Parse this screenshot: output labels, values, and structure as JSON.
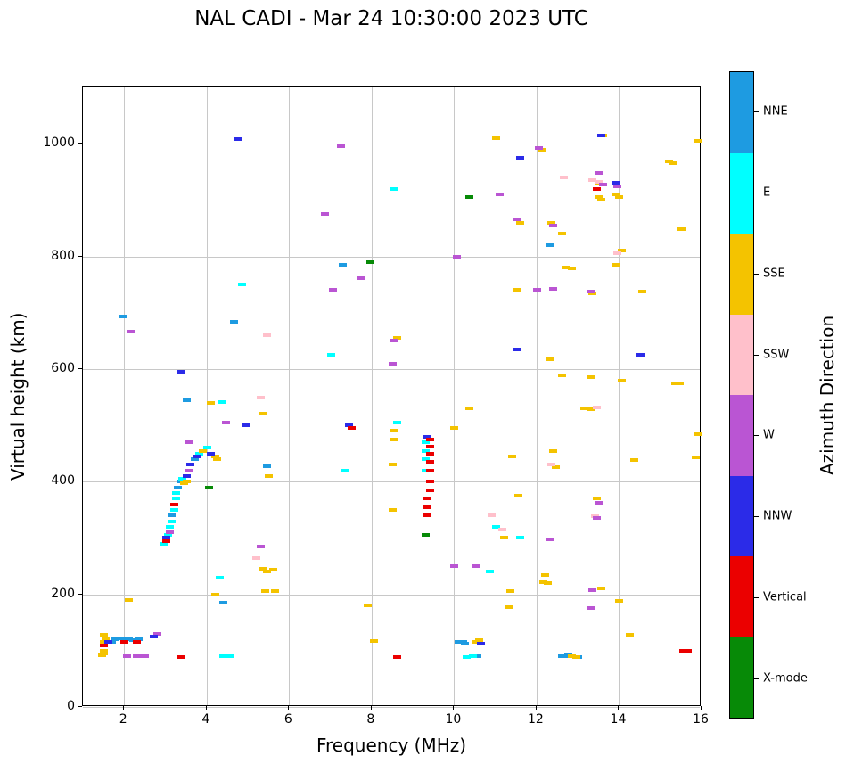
{
  "title": "NAL CADI - Mar 24 10:30:00 2023 UTC",
  "chart_data": {
    "type": "scatter",
    "title": "NAL CADI - Mar 24 10:30:00 2023 UTC",
    "xlabel": "Frequency (MHz)",
    "ylabel": "Virtual height (km)",
    "xlim": [
      1,
      16
    ],
    "ylim": [
      0,
      1100
    ],
    "x_ticks": [
      2,
      4,
      6,
      8,
      10,
      12,
      14,
      16
    ],
    "y_ticks": [
      0,
      200,
      400,
      600,
      800,
      1000
    ],
    "grid": true,
    "grid_color": "#c8c8c8",
    "axis_color": "#000000",
    "background_color": "#ffffff",
    "marker": "horizontal-dash",
    "colorbar": {
      "label": "Azimuth Direction",
      "position": "right",
      "order": "top-to-bottom",
      "categories": [
        {
          "label": "NNE",
          "color": "#1E9BE1"
        },
        {
          "label": "E",
          "color": "#00FFFF"
        },
        {
          "label": "SSE",
          "color": "#F4C300"
        },
        {
          "label": "SSW",
          "color": "#FFC0CB"
        },
        {
          "label": "W",
          "color": "#BA55D3"
        },
        {
          "label": "NNW",
          "color": "#2B2BE8"
        },
        {
          "label": "Vertical",
          "color": "#EB0000"
        },
        {
          "label": "X-mode",
          "color": "#078A07"
        }
      ]
    },
    "series": [
      {
        "name": "NNE",
        "points": [
          [
            1.7,
            115
          ],
          [
            1.75,
            120
          ],
          [
            1.9,
            122
          ],
          [
            2.1,
            120
          ],
          [
            2.2,
            118
          ],
          [
            2.35,
            120
          ],
          [
            1.95,
            693
          ],
          [
            3.15,
            340
          ],
          [
            3.3,
            390
          ],
          [
            3.35,
            400
          ],
          [
            3.5,
            545
          ],
          [
            3.7,
            440
          ],
          [
            4.4,
            185
          ],
          [
            4.65,
            683
          ],
          [
            5.45,
            428
          ],
          [
            7.3,
            785
          ],
          [
            10.1,
            115
          ],
          [
            10.2,
            115
          ],
          [
            10.25,
            112
          ],
          [
            10.55,
            90
          ],
          [
            12.3,
            820
          ],
          [
            12.6,
            90
          ],
          [
            12.7,
            90
          ],
          [
            12.75,
            92
          ],
          [
            13.0,
            88
          ]
        ]
      },
      {
        "name": "E",
        "points": [
          [
            2.95,
            290
          ],
          [
            3.05,
            305
          ],
          [
            3.1,
            320
          ],
          [
            3.15,
            330
          ],
          [
            3.2,
            350
          ],
          [
            3.25,
            370
          ],
          [
            3.25,
            380
          ],
          [
            3.4,
            405
          ],
          [
            3.8,
            450
          ],
          [
            4.0,
            460
          ],
          [
            4.35,
            542
          ],
          [
            4.3,
            230
          ],
          [
            4.4,
            90
          ],
          [
            4.55,
            90
          ],
          [
            4.85,
            750
          ],
          [
            7.0,
            625
          ],
          [
            7.35,
            420
          ],
          [
            8.6,
            505
          ],
          [
            8.55,
            920
          ],
          [
            9.3,
            420
          ],
          [
            9.3,
            440
          ],
          [
            9.3,
            455
          ],
          [
            9.3,
            470
          ],
          [
            10.3,
            88
          ],
          [
            10.45,
            90
          ],
          [
            10.85,
            240
          ],
          [
            11.0,
            320
          ],
          [
            11.6,
            300
          ]
        ]
      },
      {
        "name": "SSE",
        "points": [
          [
            1.45,
            92
          ],
          [
            1.5,
            95
          ],
          [
            1.5,
            100
          ],
          [
            1.5,
            115
          ],
          [
            1.55,
            120
          ],
          [
            1.5,
            128
          ],
          [
            2.1,
            190
          ],
          [
            3.45,
            398
          ],
          [
            3.5,
            400
          ],
          [
            3.9,
            455
          ],
          [
            4.1,
            540
          ],
          [
            4.2,
            445
          ],
          [
            4.25,
            440
          ],
          [
            4.2,
            200
          ],
          [
            5.35,
            520
          ],
          [
            5.35,
            245
          ],
          [
            5.4,
            205
          ],
          [
            5.45,
            240
          ],
          [
            5.6,
            243
          ],
          [
            5.65,
            205
          ],
          [
            5.5,
            410
          ],
          [
            7.9,
            180
          ],
          [
            8.05,
            117
          ],
          [
            8.5,
            430
          ],
          [
            8.5,
            350
          ],
          [
            8.55,
            475
          ],
          [
            8.55,
            490
          ],
          [
            8.6,
            655
          ],
          [
            10.0,
            495
          ],
          [
            10.35,
            530
          ],
          [
            10.5,
            115
          ],
          [
            10.6,
            118
          ],
          [
            11.0,
            1010
          ],
          [
            11.2,
            300
          ],
          [
            11.3,
            178
          ],
          [
            11.35,
            205
          ],
          [
            11.4,
            444
          ],
          [
            11.5,
            740
          ],
          [
            11.55,
            375
          ],
          [
            11.6,
            860
          ],
          [
            12.1,
            990
          ],
          [
            12.2,
            235
          ],
          [
            12.15,
            222
          ],
          [
            12.25,
            220
          ],
          [
            12.3,
            618
          ],
          [
            12.35,
            860
          ],
          [
            12.45,
            425
          ],
          [
            12.4,
            455
          ],
          [
            12.6,
            588
          ],
          [
            12.6,
            840
          ],
          [
            12.7,
            780
          ],
          [
            12.85,
            778
          ],
          [
            12.85,
            90
          ],
          [
            12.95,
            88
          ],
          [
            13.15,
            530
          ],
          [
            13.3,
            528
          ],
          [
            13.3,
            585
          ],
          [
            13.35,
            735
          ],
          [
            13.5,
            930
          ],
          [
            13.55,
            900
          ],
          [
            13.5,
            905
          ],
          [
            13.45,
            370
          ],
          [
            13.55,
            210
          ],
          [
            13.6,
            1015
          ],
          [
            13.9,
            785
          ],
          [
            13.9,
            910
          ],
          [
            14.0,
            905
          ],
          [
            14.0,
            188
          ],
          [
            14.05,
            810
          ],
          [
            14.05,
            580
          ],
          [
            14.25,
            128
          ],
          [
            14.35,
            438
          ],
          [
            14.55,
            737
          ],
          [
            15.2,
            968
          ],
          [
            15.3,
            965
          ],
          [
            15.35,
            575
          ],
          [
            15.45,
            575
          ],
          [
            15.5,
            848
          ],
          [
            15.85,
            443
          ],
          [
            15.9,
            485
          ],
          [
            15.9,
            1005
          ]
        ]
      },
      {
        "name": "SSW",
        "points": [
          [
            5.2,
            265
          ],
          [
            5.3,
            550
          ],
          [
            5.45,
            660
          ],
          [
            10.9,
            340
          ],
          [
            11.15,
            315
          ],
          [
            12.65,
            940
          ],
          [
            12.35,
            430
          ],
          [
            13.35,
            935
          ],
          [
            13.5,
            932
          ],
          [
            13.4,
            338
          ],
          [
            13.95,
            805
          ],
          [
            13.45,
            532
          ]
        ]
      },
      {
        "name": "W",
        "points": [
          [
            2.05,
            90
          ],
          [
            2.15,
            667
          ],
          [
            2.3,
            90
          ],
          [
            2.5,
            90
          ],
          [
            2.8,
            130
          ],
          [
            3.1,
            310
          ],
          [
            3.55,
            470
          ],
          [
            3.55,
            420
          ],
          [
            4.45,
            505
          ],
          [
            5.3,
            285
          ],
          [
            6.85,
            875
          ],
          [
            7.05,
            740
          ],
          [
            7.25,
            995
          ],
          [
            7.75,
            762
          ],
          [
            8.5,
            610
          ],
          [
            8.55,
            650
          ],
          [
            10.0,
            250
          ],
          [
            10.05,
            800
          ],
          [
            10.5,
            250
          ],
          [
            11.1,
            910
          ],
          [
            11.5,
            865
          ],
          [
            12.0,
            740
          ],
          [
            12.05,
            992
          ],
          [
            12.3,
            298
          ],
          [
            12.4,
            743
          ],
          [
            12.4,
            855
          ],
          [
            13.3,
            738
          ],
          [
            13.3,
            175
          ],
          [
            13.35,
            208
          ],
          [
            13.5,
            948
          ],
          [
            13.5,
            362
          ],
          [
            13.45,
            335
          ],
          [
            13.6,
            928
          ],
          [
            13.95,
            925
          ]
        ]
      },
      {
        "name": "NNW",
        "points": [
          [
            1.6,
            115
          ],
          [
            2.7,
            125
          ],
          [
            3.0,
            300
          ],
          [
            3.35,
            595
          ],
          [
            3.5,
            410
          ],
          [
            3.6,
            430
          ],
          [
            3.75,
            445
          ],
          [
            4.1,
            450
          ],
          [
            4.75,
            1008
          ],
          [
            4.95,
            500
          ],
          [
            7.45,
            500
          ],
          [
            9.35,
            480
          ],
          [
            10.65,
            112
          ],
          [
            11.5,
            635
          ],
          [
            11.6,
            975
          ],
          [
            13.55,
            1015
          ],
          [
            13.9,
            930
          ],
          [
            14.5,
            625
          ]
        ]
      },
      {
        "name": "Vertical",
        "points": [
          [
            1.5,
            110
          ],
          [
            2.0,
            115
          ],
          [
            2.3,
            115
          ],
          [
            3.0,
            295
          ],
          [
            3.2,
            360
          ],
          [
            3.35,
            88
          ],
          [
            7.5,
            495
          ],
          [
            8.6,
            88
          ],
          [
            9.35,
            340
          ],
          [
            9.35,
            355
          ],
          [
            9.35,
            370
          ],
          [
            9.4,
            385
          ],
          [
            9.4,
            400
          ],
          [
            9.4,
            420
          ],
          [
            9.4,
            435
          ],
          [
            9.4,
            450
          ],
          [
            9.4,
            462
          ],
          [
            9.4,
            475
          ],
          [
            13.45,
            920
          ],
          [
            15.55,
            100
          ],
          [
            15.65,
            100
          ]
        ]
      },
      {
        "name": "X-mode",
        "points": [
          [
            4.05,
            390
          ],
          [
            7.95,
            790
          ],
          [
            9.3,
            305
          ],
          [
            10.35,
            905
          ]
        ]
      }
    ]
  }
}
